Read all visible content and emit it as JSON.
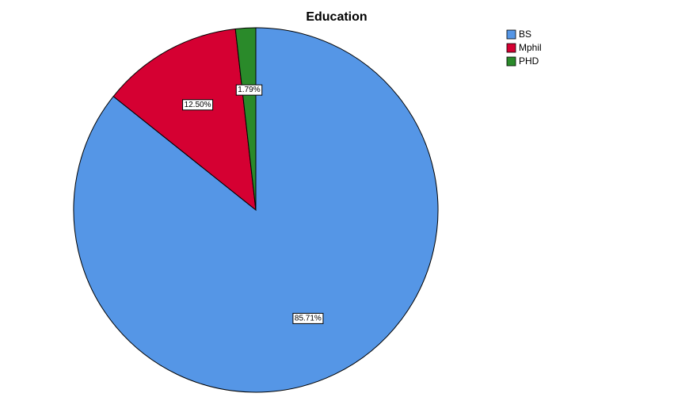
{
  "chart_data": {
    "type": "pie",
    "title": "Education",
    "categories": [
      "BS",
      "Mphil",
      "PHD"
    ],
    "values": [
      85.71,
      12.5,
      1.79
    ],
    "value_labels": [
      "85.71%",
      "12.50%",
      "1.79%"
    ],
    "colors": [
      "#5596e6",
      "#d50032",
      "#2a8a2a"
    ],
    "legend": "top-right"
  }
}
